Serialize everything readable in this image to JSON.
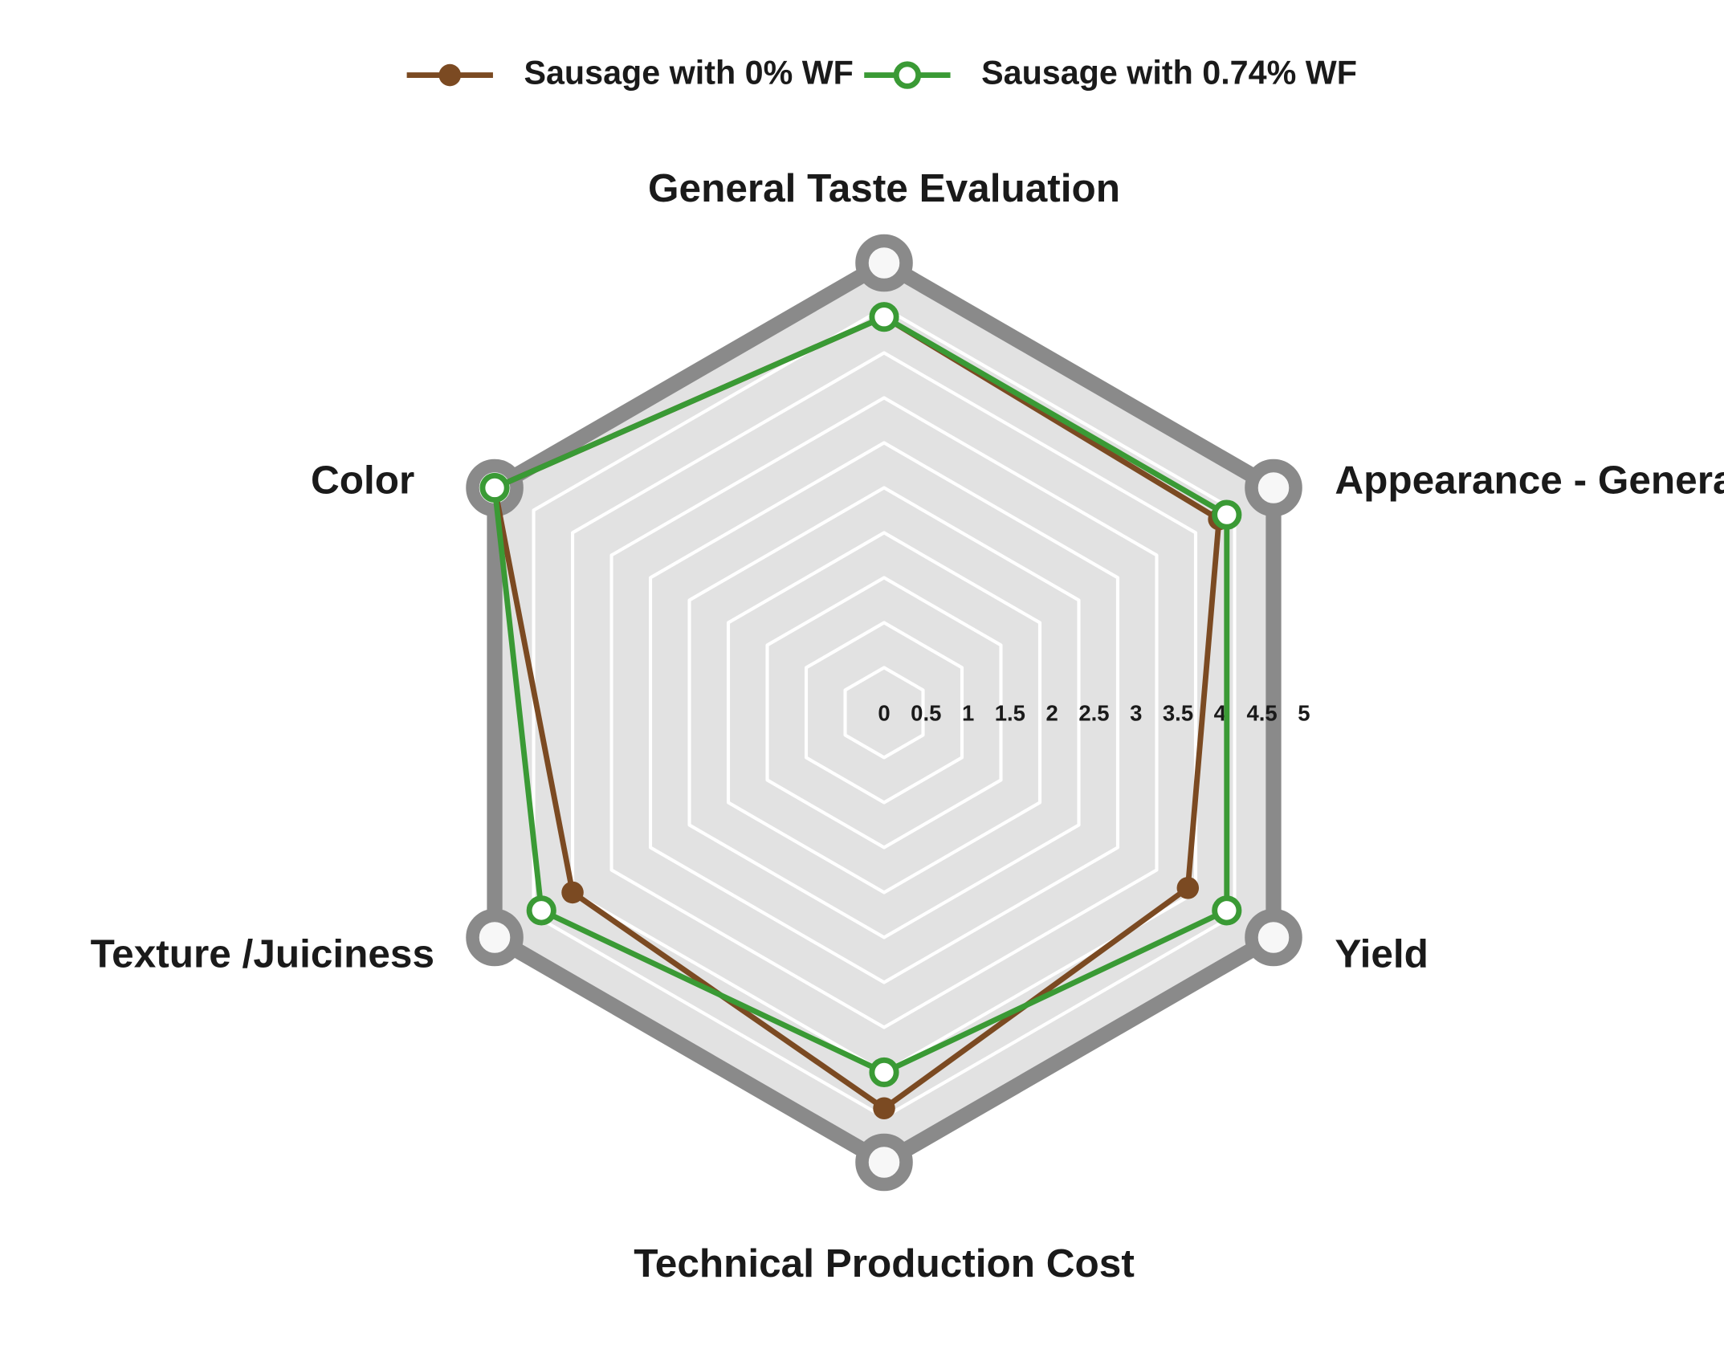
{
  "chart_data": {
    "type": "radar",
    "categories": [
      "General Taste Evaluation",
      "Appearance - General",
      "Yield",
      "Technical Production Cost",
      "Texture /Juiciness",
      "Color"
    ],
    "series": [
      {
        "name": "Sausage with 0% WF",
        "color": "#7b4a22",
        "values": [
          4.4,
          4.3,
          3.9,
          4.4,
          4.0,
          5.0
        ]
      },
      {
        "name": "Sausage with 0.74% WF",
        "color": "#3a9a35",
        "values": [
          4.4,
          4.4,
          4.4,
          4.0,
          4.4,
          5.0
        ]
      }
    ],
    "ylim": [
      0,
      5
    ],
    "yticks": [
      0,
      0.5,
      1,
      1.5,
      2,
      2.5,
      3,
      3.5,
      4,
      4.5,
      5
    ],
    "grid": true,
    "legend": "top"
  }
}
